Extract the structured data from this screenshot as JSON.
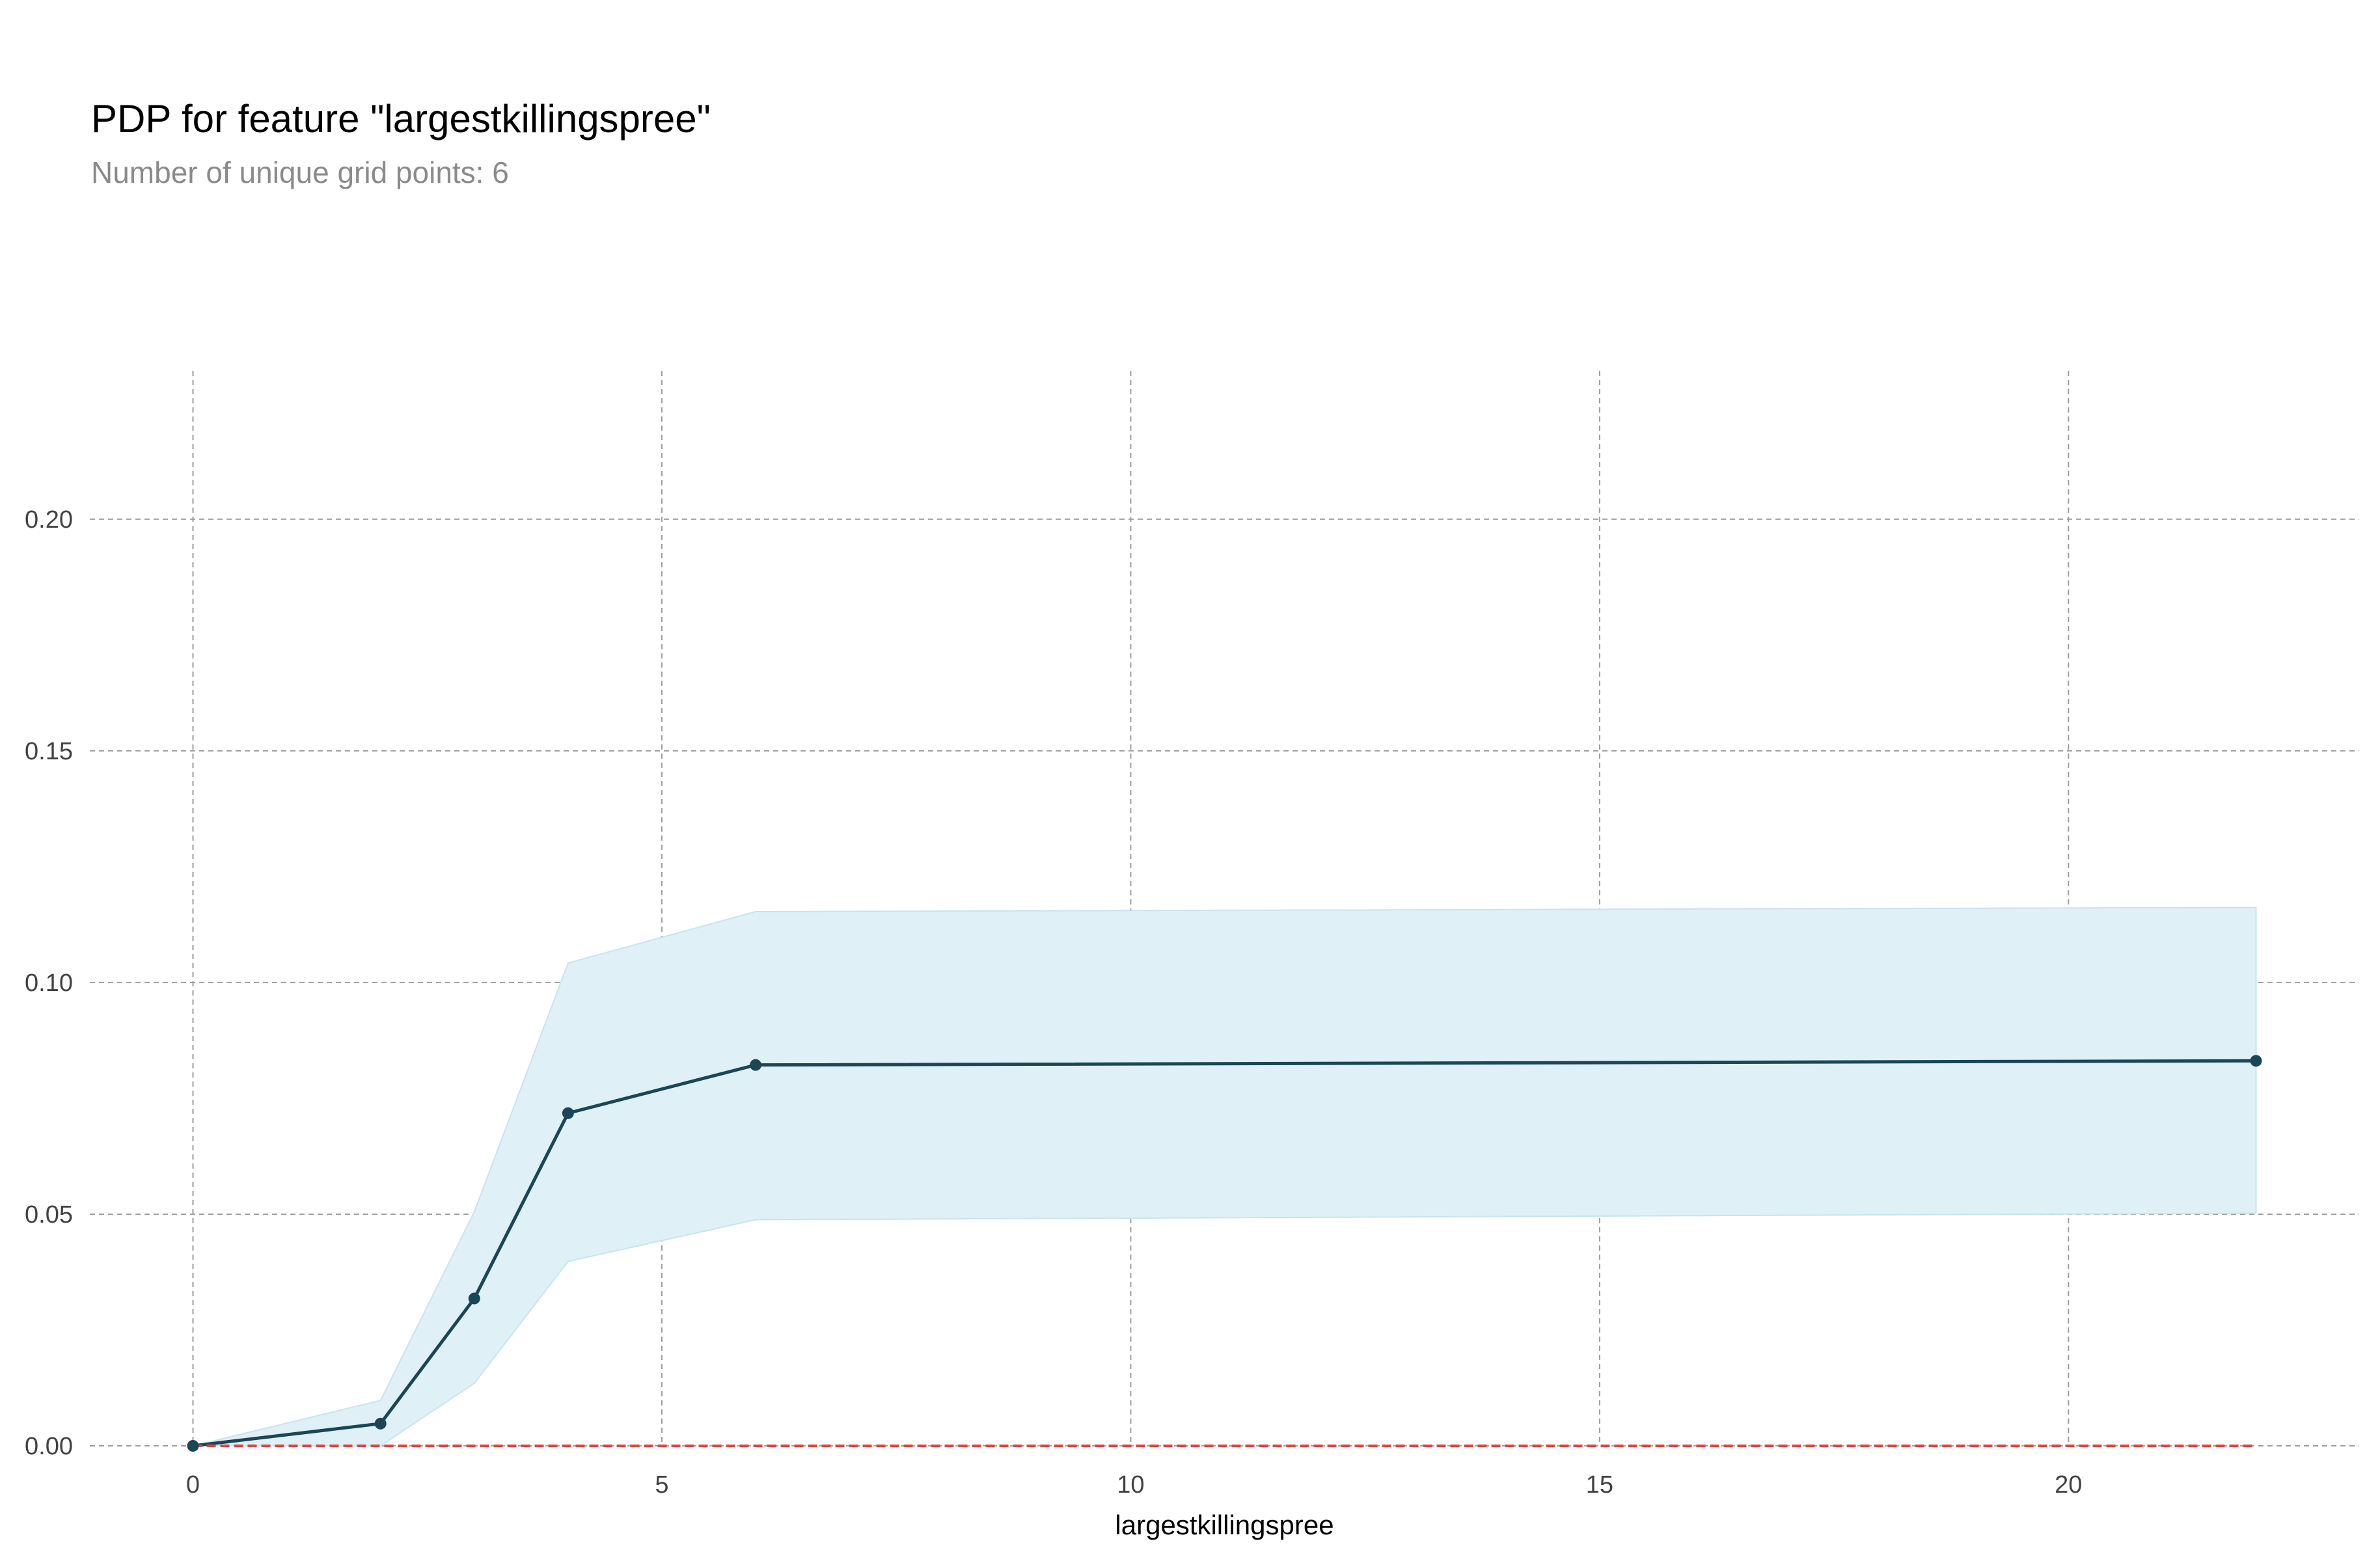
{
  "chart_data": {
    "type": "line",
    "title": "PDP for feature \"largestkillingspree\"",
    "subtitle": "Number of unique grid points: 6",
    "xlabel": "largestkillingspree",
    "ylabel": "",
    "xlim": [
      -1.1,
      23.1
    ],
    "ylim": [
      0.0,
      0.232
    ],
    "xticks": [
      0,
      5,
      10,
      15,
      20
    ],
    "xtick_labels": [
      "0",
      "5",
      "10",
      "15",
      "20"
    ],
    "yticks": [
      0.0,
      0.05,
      0.1,
      0.15,
      0.2
    ],
    "ytick_labels": [
      "0.00",
      "0.05",
      "0.10",
      "0.15",
      "0.20"
    ],
    "grid": true,
    "series": [
      {
        "role": "pdp-line",
        "x": [
          0,
          2,
          3,
          4,
          6,
          22
        ],
        "y": [
          0.0,
          0.0048,
          0.0318,
          0.0718,
          0.0822,
          0.0831
        ],
        "lower": [
          0.0,
          0.0,
          0.0135,
          0.0398,
          0.0488,
          0.0502
        ],
        "upper": [
          0.0,
          0.0098,
          0.0505,
          0.1042,
          0.1153,
          0.1162
        ],
        "color": "#1a4656",
        "band_color": "#dff0f6"
      },
      {
        "role": "zero-line",
        "x": [
          0,
          22
        ],
        "y": [
          0.0,
          0.0
        ],
        "color": "#e0453c",
        "style": "dashed"
      }
    ]
  }
}
